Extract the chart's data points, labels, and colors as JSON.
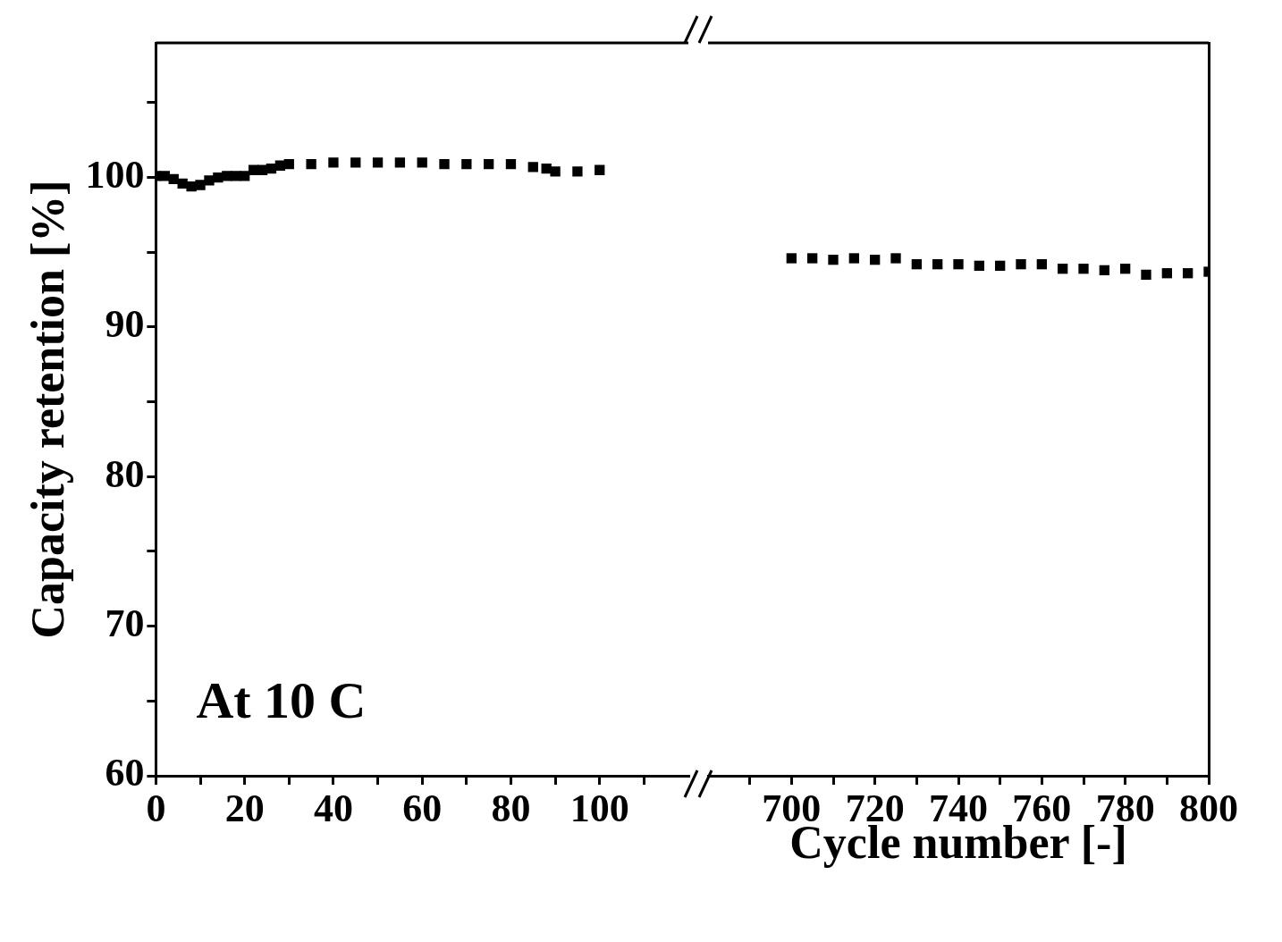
{
  "chart_data": [
    {
      "type": "scatter",
      "ylabel": "Capacity retention [%]",
      "annotations": [
        "At 10 C"
      ],
      "marker": "square",
      "color": "#000000",
      "x": [
        0,
        2,
        4,
        6,
        8,
        10,
        12,
        14,
        16,
        18,
        20,
        22,
        24,
        26,
        28,
        30,
        35,
        40,
        45,
        50,
        55,
        60,
        65,
        70,
        75,
        80,
        85,
        88,
        90,
        95,
        100
      ],
      "values": [
        100.1,
        100.1,
        99.9,
        99.6,
        99.4,
        99.5,
        99.8,
        100,
        100.1,
        100.1,
        100.1,
        100.5,
        100.5,
        100.6,
        100.8,
        100.9,
        100.9,
        101,
        101,
        101,
        101,
        101,
        100.9,
        100.9,
        100.9,
        100.9,
        100.7,
        100.6,
        100.4,
        100.4,
        100.5
      ],
      "xlim": [
        0,
        120
      ],
      "xticks": [
        0,
        {
          "value": 10,
          "label": null
        },
        20,
        {
          "value": 30,
          "label": null
        },
        40,
        {
          "value": 50,
          "label": null
        },
        60,
        {
          "value": 70,
          "label": null
        },
        80,
        {
          "value": 90,
          "label": null
        },
        100,
        {
          "value": 110,
          "label": null
        }
      ],
      "ylim": [
        60,
        109
      ],
      "yticks": [
        60,
        {
          "value": 65,
          "label": null
        },
        70,
        {
          "value": 75,
          "label": null
        },
        80,
        {
          "value": 85,
          "label": null
        },
        90,
        {
          "value": 95,
          "label": null
        },
        100,
        {
          "value": 105,
          "label": null
        }
      ]
    },
    {
      "type": "scatter",
      "xlabel": "Cycle number [-]",
      "marker": "square",
      "color": "#000000",
      "tick_labels": "x",
      "x": [
        700,
        705,
        710,
        715,
        720,
        725,
        730,
        735,
        740,
        745,
        750,
        755,
        760,
        765,
        770,
        775,
        780,
        785,
        790,
        795,
        800
      ],
      "values": [
        94.6,
        94.6,
        94.5,
        94.6,
        94.5,
        94.6,
        94.2,
        94.2,
        94.2,
        94.1,
        94.1,
        94.2,
        94.2,
        93.9,
        93.9,
        93.8,
        93.9,
        93.5,
        93.6,
        93.6,
        93.7
      ],
      "xlim": [
        680,
        800
      ],
      "xticks": [
        {
          "value": 690,
          "label": null
        },
        700,
        {
          "value": 710,
          "label": null
        },
        720,
        {
          "value": 730,
          "label": null
        },
        740,
        {
          "value": 750,
          "label": null
        },
        760,
        {
          "value": 770,
          "label": null
        },
        780,
        {
          "value": 790,
          "label": null
        },
        800
      ],
      "ylim": [
        60,
        109
      ],
      "yticks": [
        60,
        70,
        80,
        90,
        100
      ]
    }
  ]
}
